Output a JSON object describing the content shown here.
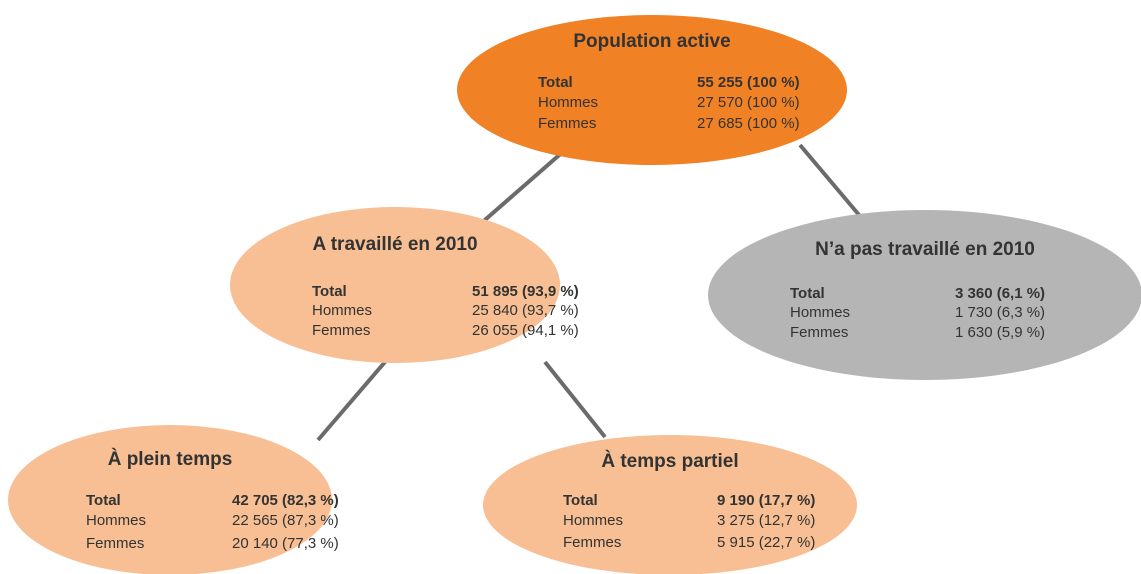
{
  "nodes": [
    {
      "title": "Population active",
      "rows": [
        {
          "label": "Total",
          "value": "55 255 (100 %)"
        },
        {
          "label": "Hommes",
          "value": "27 570 (100 %)"
        },
        {
          "label": "Femmes",
          "value": "27 685 (100 %)"
        }
      ]
    },
    {
      "title": "A travaillé en 2010",
      "rows": [
        {
          "label": "Total",
          "value": "51 895 (93,9 %)"
        },
        {
          "label": "Hommes",
          "value": "25 840 (93,7 %)"
        },
        {
          "label": "Femmes",
          "value": "26 055 (94,1 %)"
        }
      ]
    },
    {
      "title": "N’a pas travaillé en 2010",
      "rows": [
        {
          "label": "Total",
          "value": "3 360 (6,1 %)"
        },
        {
          "label": "Hommes",
          "value": "1 730 (6,3 %)"
        },
        {
          "label": "Femmes",
          "value": "1 630 (5,9 %)"
        }
      ]
    },
    {
      "title": "À plein temps",
      "rows": [
        {
          "label": "Total",
          "value": "42 705 (82,3 %)"
        },
        {
          "label": "Hommes",
          "value": "22 565 (87,3 %)"
        },
        {
          "label": "Femmes",
          "value": "20 140 (77,3 %)"
        }
      ]
    },
    {
      "title": "À temps partiel",
      "rows": [
        {
          "label": "Total",
          "value": "9 190 (17,7 %)"
        },
        {
          "label": "Hommes",
          "value": "3 275 (12,7 %)"
        },
        {
          "label": "Femmes",
          "value": "5 915 (22,7 %)"
        }
      ]
    }
  ]
}
